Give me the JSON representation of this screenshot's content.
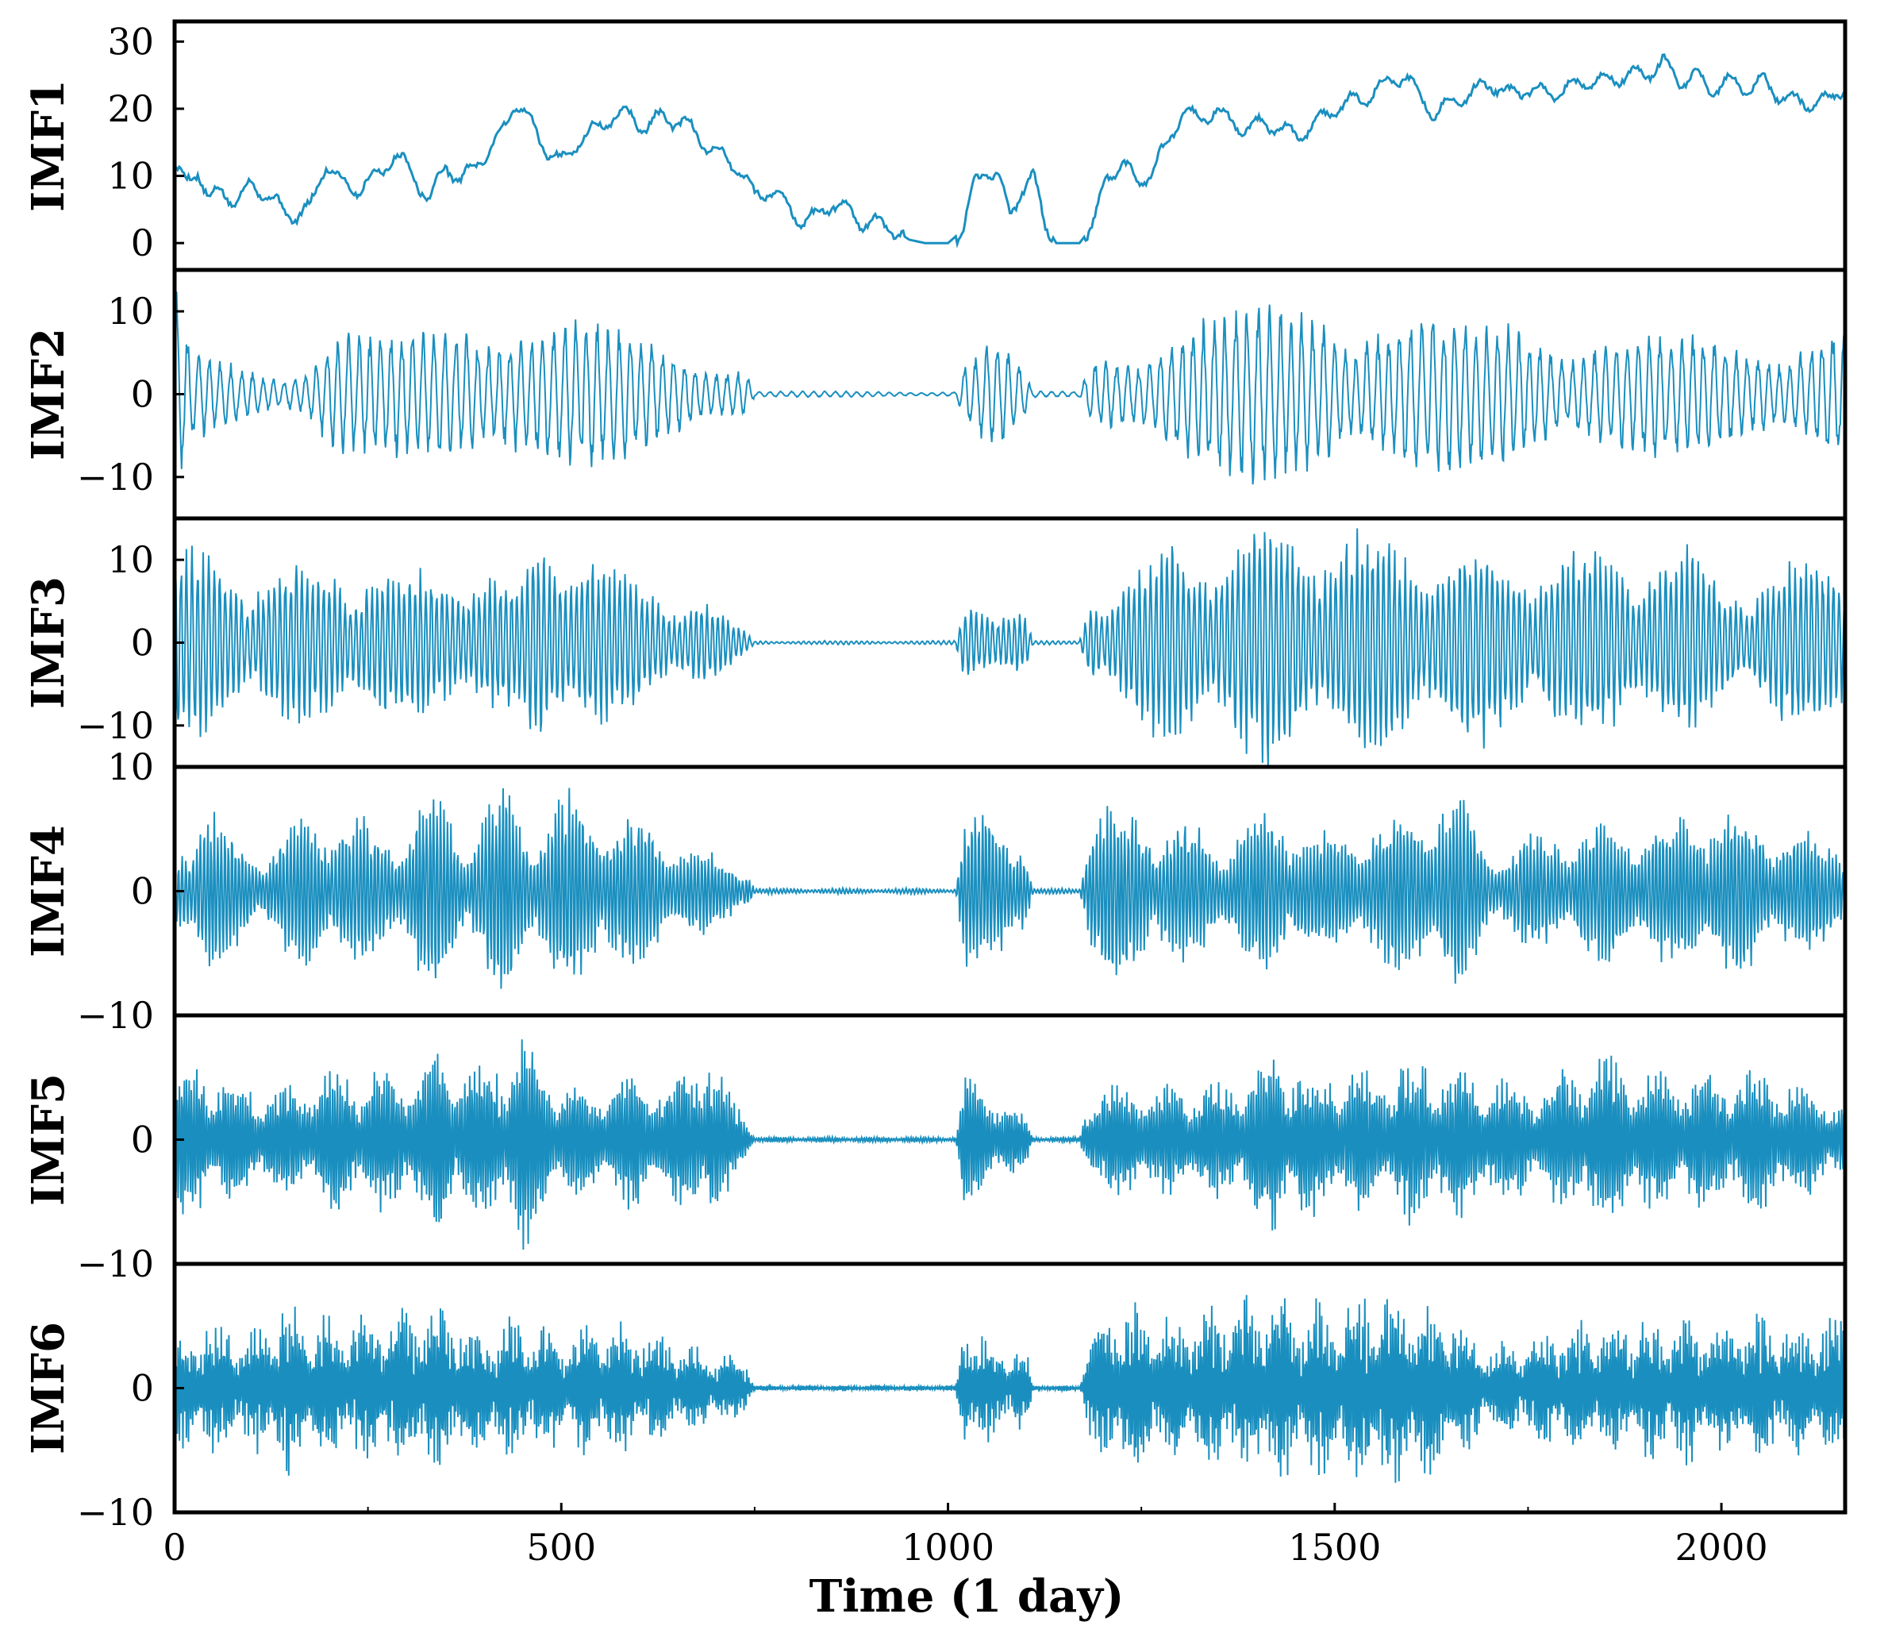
{
  "chart_data": {
    "type": "line",
    "xlabel": "Time (1 day)",
    "xlim": [
      0,
      2160
    ],
    "xticks": [
      0,
      500,
      1000,
      1500,
      2000
    ],
    "xtick_labels": [
      "0",
      "500",
      "1000",
      "1500",
      "2000"
    ],
    "series_color": "#1a8fbf",
    "panels": [
      {
        "name": "IMF1",
        "ylabel": "IMF1",
        "ylim": [
          -4,
          33
        ],
        "yticks": [
          0,
          10,
          20,
          30
        ],
        "ytick_labels": [
          "0",
          "10",
          "20",
          "30"
        ],
        "kind": "trend",
        "points": [
          [
            0,
            11
          ],
          [
            15,
            9
          ],
          [
            30,
            11
          ],
          [
            45,
            6
          ],
          [
            60,
            8
          ],
          [
            80,
            6
          ],
          [
            100,
            9
          ],
          [
            120,
            7
          ],
          [
            140,
            5
          ],
          [
            155,
            4
          ],
          [
            175,
            5
          ],
          [
            195,
            12
          ],
          [
            215,
            9
          ],
          [
            240,
            8
          ],
          [
            260,
            10
          ],
          [
            285,
            13
          ],
          [
            305,
            11
          ],
          [
            330,
            6
          ],
          [
            350,
            12
          ],
          [
            370,
            9
          ],
          [
            390,
            12
          ],
          [
            410,
            14
          ],
          [
            425,
            17
          ],
          [
            440,
            21
          ],
          [
            460,
            18
          ],
          [
            480,
            14
          ],
          [
            500,
            12
          ],
          [
            520,
            15
          ],
          [
            545,
            17
          ],
          [
            570,
            19
          ],
          [
            590,
            19
          ],
          [
            610,
            17
          ],
          [
            630,
            19
          ],
          [
            650,
            18
          ],
          [
            670,
            17
          ],
          [
            690,
            14
          ],
          [
            710,
            13
          ],
          [
            730,
            11
          ],
          [
            750,
            7
          ],
          [
            770,
            8
          ],
          [
            790,
            6
          ],
          [
            810,
            3
          ],
          [
            830,
            4
          ],
          [
            850,
            6
          ],
          [
            870,
            5
          ],
          [
            890,
            3
          ],
          [
            910,
            3
          ],
          [
            930,
            2
          ],
          [
            950,
            0.5
          ],
          [
            970,
            0
          ],
          [
            1000,
            0
          ],
          [
            1020,
            2
          ],
          [
            1035,
            9
          ],
          [
            1050,
            11
          ],
          [
            1065,
            10
          ],
          [
            1080,
            4
          ],
          [
            1095,
            8
          ],
          [
            1110,
            10
          ],
          [
            1125,
            3
          ],
          [
            1140,
            0
          ],
          [
            1170,
            0
          ],
          [
            1190,
            3
          ],
          [
            1205,
            10
          ],
          [
            1225,
            12
          ],
          [
            1245,
            9
          ],
          [
            1265,
            11
          ],
          [
            1285,
            15
          ],
          [
            1305,
            20
          ],
          [
            1325,
            18
          ],
          [
            1345,
            20
          ],
          [
            1365,
            18
          ],
          [
            1385,
            17
          ],
          [
            1410,
            18
          ],
          [
            1430,
            17
          ],
          [
            1455,
            16
          ],
          [
            1475,
            18
          ],
          [
            1500,
            20
          ],
          [
            1520,
            21
          ],
          [
            1545,
            22
          ],
          [
            1570,
            24
          ],
          [
            1590,
            25
          ],
          [
            1610,
            22
          ],
          [
            1630,
            19
          ],
          [
            1650,
            21
          ],
          [
            1675,
            22
          ],
          [
            1700,
            24
          ],
          [
            1725,
            22
          ],
          [
            1750,
            23
          ],
          [
            1775,
            22
          ],
          [
            1800,
            23
          ],
          [
            1825,
            24
          ],
          [
            1850,
            24
          ],
          [
            1875,
            25
          ],
          [
            1900,
            25
          ],
          [
            1925,
            27
          ],
          [
            1945,
            24
          ],
          [
            1965,
            25
          ],
          [
            1985,
            23
          ],
          [
            2010,
            24
          ],
          [
            2035,
            23
          ],
          [
            2055,
            24
          ],
          [
            2075,
            22
          ],
          [
            2095,
            21
          ],
          [
            2115,
            21
          ],
          [
            2135,
            21
          ],
          [
            2155,
            23
          ]
        ]
      },
      {
        "name": "IMF2",
        "ylabel": "IMF2",
        "ylim": [
          -15,
          15
        ],
        "yticks": [
          -10,
          0,
          10
        ],
        "ytick_labels": [
          "−10",
          "0",
          "10"
        ],
        "kind": "oscillation",
        "period": 14,
        "seed": 11,
        "envelope": [
          [
            0,
            12
          ],
          [
            20,
            5
          ],
          [
            60,
            4
          ],
          [
            120,
            3
          ],
          [
            170,
            3
          ],
          [
            200,
            7
          ],
          [
            260,
            6
          ],
          [
            330,
            7
          ],
          [
            380,
            9
          ],
          [
            430,
            10
          ],
          [
            470,
            8
          ],
          [
            520,
            8
          ],
          [
            560,
            7
          ],
          [
            620,
            6
          ],
          [
            680,
            5
          ],
          [
            740,
            3
          ],
          [
            750,
            0.3
          ],
          [
            1010,
            0.3
          ],
          [
            1020,
            4
          ],
          [
            1060,
            6
          ],
          [
            1095,
            3
          ],
          [
            1110,
            0.3
          ],
          [
            1170,
            0.3
          ],
          [
            1185,
            4
          ],
          [
            1240,
            6
          ],
          [
            1300,
            8
          ],
          [
            1400,
            9
          ],
          [
            1480,
            10
          ],
          [
            1560,
            9
          ],
          [
            1640,
            8
          ],
          [
            1720,
            8
          ],
          [
            1800,
            7
          ],
          [
            1880,
            7
          ],
          [
            1960,
            6
          ],
          [
            2040,
            6
          ],
          [
            2100,
            7
          ],
          [
            2155,
            8
          ]
        ]
      },
      {
        "name": "IMF3",
        "ylabel": "IMF3",
        "ylim": [
          -15,
          15
        ],
        "yticks": [
          -10,
          0,
          10
        ],
        "ytick_labels": [
          "−10",
          "0",
          "10"
        ],
        "kind": "oscillation",
        "period": 7,
        "seed": 23,
        "envelope": [
          [
            0,
            10
          ],
          [
            60,
            9
          ],
          [
            120,
            8
          ],
          [
            180,
            8
          ],
          [
            240,
            9
          ],
          [
            300,
            7
          ],
          [
            360,
            9
          ],
          [
            400,
            8
          ],
          [
            440,
            6
          ],
          [
            470,
            11
          ],
          [
            520,
            12
          ],
          [
            580,
            7
          ],
          [
            620,
            6
          ],
          [
            680,
            5
          ],
          [
            740,
            1
          ],
          [
            750,
            0.2
          ],
          [
            1010,
            0.2
          ],
          [
            1020,
            4
          ],
          [
            1080,
            5
          ],
          [
            1100,
            3
          ],
          [
            1110,
            0.2
          ],
          [
            1170,
            0.2
          ],
          [
            1185,
            6
          ],
          [
            1240,
            8
          ],
          [
            1300,
            11
          ],
          [
            1400,
            12
          ],
          [
            1480,
            13
          ],
          [
            1560,
            11
          ],
          [
            1640,
            11
          ],
          [
            1720,
            10
          ],
          [
            1800,
            10
          ],
          [
            1880,
            10
          ],
          [
            1960,
            10
          ],
          [
            2000,
            6
          ],
          [
            2050,
            8
          ],
          [
            2100,
            9
          ],
          [
            2155,
            9
          ]
        ]
      },
      {
        "name": "IMF4",
        "ylabel": "IMF4",
        "ylim": [
          -10,
          10
        ],
        "yticks": [
          -10,
          0,
          10
        ],
        "ytick_labels": [
          "−10",
          "0",
          "10"
        ],
        "kind": "oscillation",
        "period": 4.5,
        "seed": 37,
        "envelope": [
          [
            0,
            3
          ],
          [
            40,
            6
          ],
          [
            80,
            4
          ],
          [
            120,
            3
          ],
          [
            180,
            6
          ],
          [
            240,
            5
          ],
          [
            300,
            4
          ],
          [
            330,
            8
          ],
          [
            380,
            4
          ],
          [
            430,
            8
          ],
          [
            460,
            5
          ],
          [
            510,
            7
          ],
          [
            560,
            6
          ],
          [
            620,
            5
          ],
          [
            680,
            3
          ],
          [
            740,
            2
          ],
          [
            750,
            0.2
          ],
          [
            1010,
            0.2
          ],
          [
            1020,
            6
          ],
          [
            1060,
            5
          ],
          [
            1095,
            5
          ],
          [
            1110,
            0.2
          ],
          [
            1170,
            0.2
          ],
          [
            1185,
            7
          ],
          [
            1220,
            6
          ],
          [
            1300,
            5
          ],
          [
            1360,
            4
          ],
          [
            1420,
            6
          ],
          [
            1480,
            4
          ],
          [
            1560,
            5
          ],
          [
            1640,
            7
          ],
          [
            1660,
            7
          ],
          [
            1700,
            3
          ],
          [
            1760,
            4
          ],
          [
            1840,
            5
          ],
          [
            1920,
            5
          ],
          [
            2000,
            6
          ],
          [
            2060,
            5
          ],
          [
            2120,
            4
          ],
          [
            2155,
            4
          ]
        ]
      },
      {
        "name": "IMF5",
        "ylabel": "IMF5",
        "ylim": [
          -10,
          10
        ],
        "yticks": [
          -10,
          0
        ],
        "ytick_labels": [
          "−10",
          "0"
        ],
        "kind": "oscillation",
        "period": 3.2,
        "seed": 51,
        "envelope": [
          [
            0,
            5
          ],
          [
            30,
            6
          ],
          [
            80,
            4
          ],
          [
            140,
            4
          ],
          [
            200,
            5
          ],
          [
            260,
            5
          ],
          [
            320,
            5
          ],
          [
            340,
            7
          ],
          [
            380,
            5
          ],
          [
            420,
            6
          ],
          [
            450,
            8
          ],
          [
            500,
            4
          ],
          [
            560,
            4
          ],
          [
            600,
            5
          ],
          [
            640,
            4
          ],
          [
            690,
            7
          ],
          [
            720,
            3
          ],
          [
            740,
            2
          ],
          [
            750,
            0.2
          ],
          [
            1010,
            0.2
          ],
          [
            1020,
            5
          ],
          [
            1080,
            3
          ],
          [
            1100,
            2
          ],
          [
            1110,
            0.2
          ],
          [
            1170,
            0.2
          ],
          [
            1185,
            4
          ],
          [
            1220,
            4
          ],
          [
            1300,
            4
          ],
          [
            1360,
            4
          ],
          [
            1420,
            7
          ],
          [
            1480,
            5
          ],
          [
            1560,
            5
          ],
          [
            1620,
            6
          ],
          [
            1680,
            5
          ],
          [
            1760,
            4
          ],
          [
            1840,
            6
          ],
          [
            1920,
            5
          ],
          [
            2000,
            5
          ],
          [
            2060,
            5
          ],
          [
            2120,
            4
          ],
          [
            2155,
            3
          ]
        ]
      },
      {
        "name": "IMF6",
        "ylabel": "IMF6",
        "ylim": [
          -10,
          10
        ],
        "yticks": [
          -10,
          0
        ],
        "ytick_labels": [
          "−10",
          "0"
        ],
        "kind": "oscillation",
        "period": 2.4,
        "seed": 67,
        "envelope": [
          [
            0,
            4
          ],
          [
            40,
            5
          ],
          [
            100,
            4
          ],
          [
            140,
            6
          ],
          [
            200,
            5
          ],
          [
            260,
            5
          ],
          [
            320,
            6
          ],
          [
            380,
            5
          ],
          [
            440,
            5
          ],
          [
            500,
            4
          ],
          [
            560,
            5
          ],
          [
            620,
            4
          ],
          [
            680,
            3
          ],
          [
            740,
            2
          ],
          [
            750,
            0.2
          ],
          [
            1010,
            0.2
          ],
          [
            1020,
            5
          ],
          [
            1080,
            3
          ],
          [
            1100,
            3
          ],
          [
            1110,
            0.2
          ],
          [
            1170,
            0.2
          ],
          [
            1185,
            5
          ],
          [
            1240,
            6
          ],
          [
            1300,
            5
          ],
          [
            1360,
            6
          ],
          [
            1420,
            7
          ],
          [
            1480,
            6
          ],
          [
            1560,
            7
          ],
          [
            1640,
            6
          ],
          [
            1700,
            3
          ],
          [
            1760,
            4
          ],
          [
            1840,
            5
          ],
          [
            1920,
            5
          ],
          [
            2000,
            5
          ],
          [
            2080,
            5
          ],
          [
            2155,
            5
          ]
        ]
      }
    ]
  }
}
